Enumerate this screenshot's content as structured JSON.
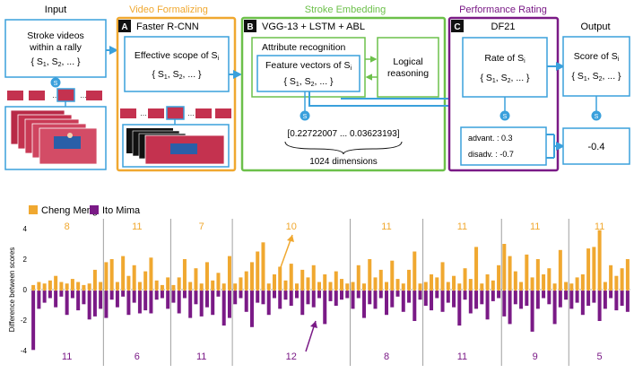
{
  "pipeline": {
    "input": {
      "title": "Input",
      "box_line1": "Stroke videos",
      "box_line2": "within a rally",
      "set_label": "{ S",
      "set_sub1": "1",
      "set_sub2": "2",
      "set_tail": ", ...   }",
      "s_badge": "S"
    },
    "video_formalizing": {
      "title": "Video Formalizing",
      "badge": "A",
      "method": "Faster R-CNN",
      "box_line1": "Effective scope of S",
      "box_sub": "i",
      "set_label": "{ S",
      "set_sub1": "1",
      "set_sub2": "2",
      "set_tail": ", ...   }"
    },
    "stroke_embedding": {
      "title": "Stroke Embedding",
      "badge": "B",
      "method": "VGG-13 + LSTM + ABL",
      "attr_label": "Attribute recognition",
      "feature_label": "Feature vectors of S",
      "feature_sub": "i",
      "set_label": "{ S",
      "set_sub1": "1",
      "set_sub2": "2",
      "set_tail": ", ...   }",
      "logic_line1": "Logical",
      "logic_line2": "reasoning",
      "s_badge": "S",
      "vector_text": "[0.22722007 ... 0.03623193]",
      "dims_text": "1024 dimensions"
    },
    "performance_rating": {
      "title": "Performance Rating",
      "badge": "C",
      "method": "DF21",
      "rate_label": "Rate of S",
      "rate_sub": "i",
      "set_label": "{ S",
      "set_sub1": "1",
      "set_sub2": "2",
      "set_tail": ", ...   }",
      "s_badge": "S",
      "advant_label": "advant. : 0.3",
      "disadv_label": "disadv. : -0.7"
    },
    "output": {
      "title": "Output",
      "score_label": "Score of S",
      "score_sub": "i",
      "set_label": "{ S",
      "set_sub1": "1",
      "set_sub2": "2",
      "set_tail": ", ...   }",
      "s_badge": "S",
      "result_value": "-0.4"
    }
  },
  "colors": {
    "blue": "#3aa0dc",
    "orange": "#f0a830",
    "green": "#6cc04a",
    "purple": "#7a1a86",
    "court_red": "#c4324f"
  },
  "chart_data": {
    "type": "bar",
    "ylabel": "Difference between scores",
    "ylim": [
      -4.5,
      4.5
    ],
    "yticks": [
      -4,
      -2,
      0,
      2,
      4
    ],
    "series": [
      {
        "name": "Cheng Meng",
        "color": "#f0a830",
        "sign": 1,
        "groups": [
          [
            0.3,
            0.5,
            0.4,
            0.6,
            0.9,
            0.5,
            0.4,
            0.7,
            0.5,
            0.3,
            0.4,
            1.3,
            0.5
          ],
          [
            1.8,
            2.0,
            0.5,
            2.2,
            0.9,
            1.6,
            0.5,
            1.2,
            2.1,
            0.6,
            0.3,
            0.8
          ],
          [
            0.3,
            0.8,
            2.0,
            0.5,
            1.4,
            0.4,
            1.8,
            0.6,
            1.1,
            0.4,
            2.2
          ],
          [
            0.4,
            0.8,
            1.2,
            1.8,
            2.5,
            3.1,
            0.4,
            1.0,
            1.5,
            0.6,
            1.7,
            0.4,
            1.3,
            0.8,
            1.6,
            0.5,
            1.0,
            0.5,
            1.2,
            0.7,
            0.4
          ],
          [
            0.5,
            1.6,
            0.4,
            2.0,
            0.8,
            1.3,
            0.5,
            1.9,
            0.7,
            0.4,
            1.3,
            2.5,
            0.4
          ],
          [
            0.5,
            1.0,
            0.8,
            1.8,
            0.5,
            0.9,
            0.4,
            1.4,
            0.7,
            2.8,
            0.4,
            1.0,
            0.6,
            1.6
          ],
          [
            3.0,
            2.2,
            1.2,
            0.5,
            2.3,
            0.8,
            2.0,
            1.0,
            1.4,
            0.4,
            2.6,
            0.5
          ],
          [
            0.4,
            0.8,
            1.0,
            2.7,
            2.8,
            3.9,
            0.5,
            1.6,
            0.9,
            1.4,
            2.0
          ]
        ]
      },
      {
        "name": "Ito Mima",
        "color": "#7a1a86",
        "sign": -1,
        "groups": [
          [
            3.9,
            1.2,
            0.8,
            0.5,
            1.1,
            0.4,
            1.6,
            0.5,
            1.3,
            0.9,
            1.9,
            1.7,
            1.2
          ],
          [
            1.8,
            0.6,
            1.1,
            0.4,
            1.6,
            0.8,
            1.5,
            1.3,
            1.5,
            0.6,
            0.5,
            1.2
          ],
          [
            0.8,
            1.5,
            0.5,
            1.8,
            0.9,
            1.7,
            1.1,
            1.6,
            0.4,
            2.3,
            1.8
          ],
          [
            0.9,
            0.5,
            1.4,
            2.4,
            0.8,
            0.9,
            1.6,
            0.5,
            1.2,
            0.6,
            1.0,
            0.5,
            1.6,
            0.9,
            1.1,
            0.5,
            2.2,
            0.7,
            1.0,
            0.6,
            0.5
          ],
          [
            1.2,
            0.5,
            1.8,
            0.9,
            1.2,
            0.5,
            1.6,
            1.1,
            0.4,
            1.4,
            0.8,
            2.0,
            0.6
          ],
          [
            1.0,
            1.3,
            0.5,
            1.4,
            0.8,
            1.1,
            2.3,
            0.6,
            1.5,
            1.2,
            0.9,
            1.9,
            0.7,
            0.5
          ],
          [
            1.7,
            2.2,
            0.9,
            1.2,
            1.0,
            2.7,
            1.2,
            0.5,
            0.9,
            2.2,
            1.1,
            0.6
          ],
          [
            1.2,
            0.8,
            1.6,
            1.0,
            0.8,
            2.0,
            1.2,
            0.5,
            1.3,
            1.0,
            1.4
          ]
        ]
      }
    ],
    "group_top_labels": [
      "8",
      "11",
      "7",
      "10",
      "11",
      "11",
      "11",
      "11"
    ],
    "group_bottom_labels": [
      "11",
      "6",
      "11",
      "12",
      "8",
      "11",
      "9",
      "5"
    ]
  }
}
